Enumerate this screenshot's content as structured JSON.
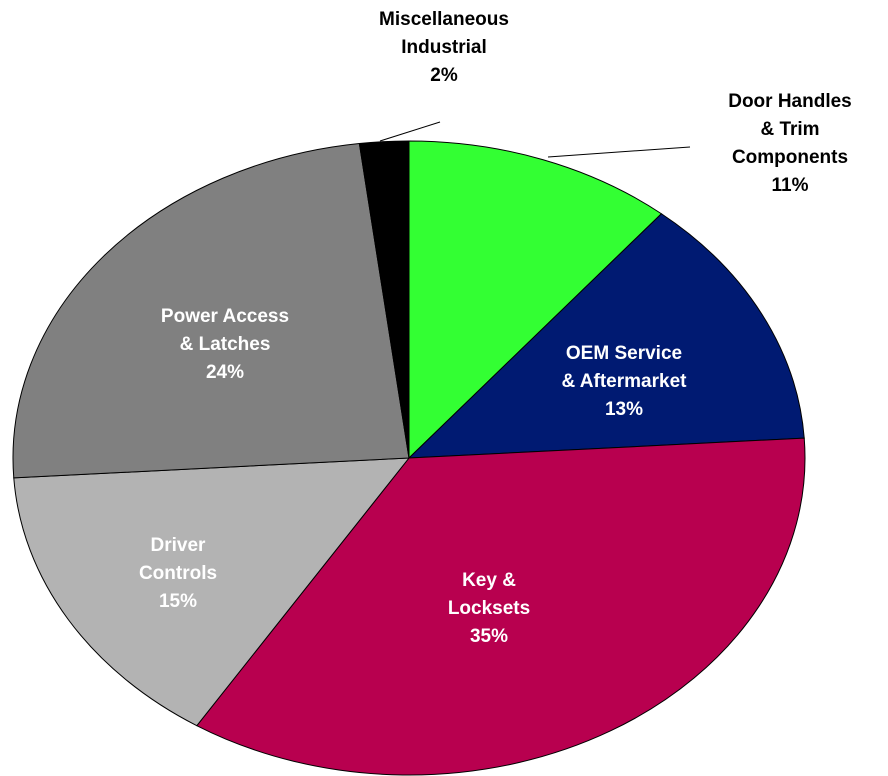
{
  "chart_data": {
    "type": "pie",
    "categories": [
      [
        "Door Handles",
        "& Trim",
        "Components"
      ],
      [
        "OEM Service",
        "& Aftermarket"
      ],
      [
        "Key &",
        "Locksets"
      ],
      [
        "Driver",
        "Controls"
      ],
      [
        "Power Access",
        "& Latches"
      ],
      [
        "Miscellaneous",
        "Industrial"
      ]
    ],
    "values": [
      11,
      13,
      35,
      15,
      24,
      2
    ],
    "value_labels": [
      "11%",
      "13%",
      "35%",
      "15%",
      "24%",
      "2%"
    ],
    "colors": [
      "#33ff33",
      "#001a72",
      "#b8004f",
      "#b3b3b3",
      "#808080",
      "#000000"
    ]
  }
}
